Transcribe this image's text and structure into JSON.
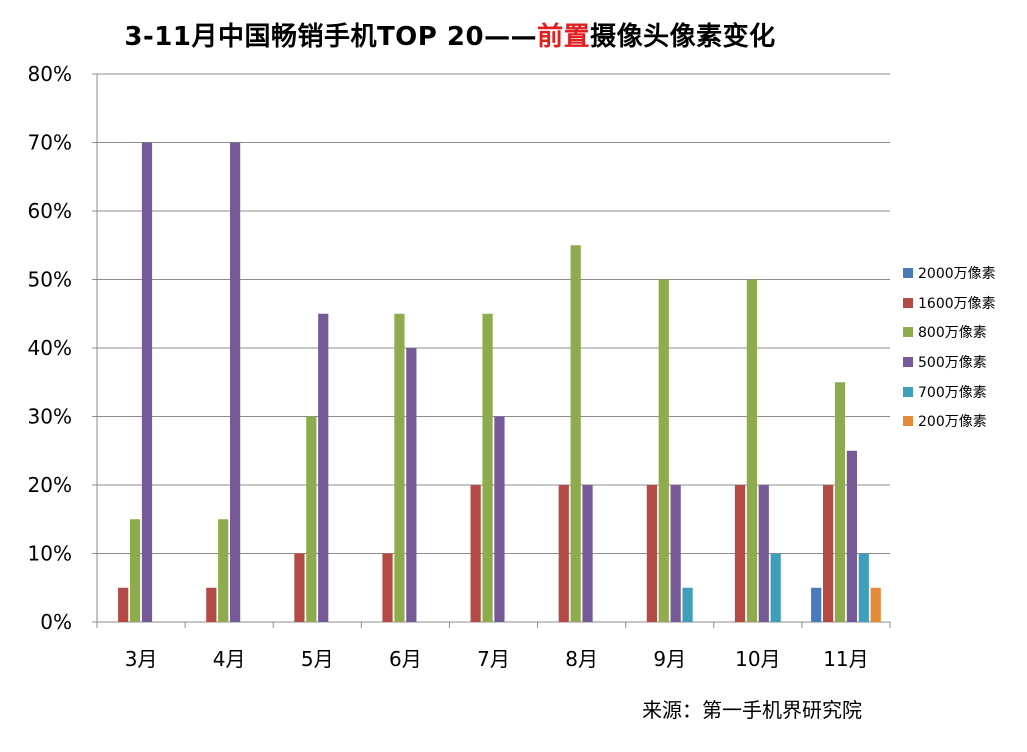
{
  "title": {
    "part1": "3-11月中国畅销手机TOP 20——",
    "highlight": "前置",
    "part2": "摄像头像素变化"
  },
  "source": "来源：第一手机界研究院",
  "chart_data": {
    "type": "bar",
    "title": "3-11月中国畅销手机TOP 20——前置摄像头像素变化",
    "xlabel": "",
    "ylabel": "",
    "ylim": [
      0,
      80
    ],
    "y_ticks": [
      "0%",
      "10%",
      "20%",
      "30%",
      "40%",
      "50%",
      "60%",
      "70%",
      "80%"
    ],
    "grid": true,
    "legend_position": "right",
    "categories": [
      "3月",
      "4月",
      "5月",
      "6月",
      "7月",
      "8月",
      "9月",
      "10月",
      "11月"
    ],
    "series": [
      {
        "name": "2000万像素",
        "color": "#4a7ab9",
        "values": [
          0,
          0,
          0,
          0,
          0,
          0,
          0,
          0,
          5
        ]
      },
      {
        "name": "1600万像素",
        "color": "#b44a45",
        "values": [
          5,
          5,
          10,
          10,
          20,
          20,
          20,
          20,
          20
        ]
      },
      {
        "name": "800万像素",
        "color": "#8eab4e",
        "values": [
          15,
          15,
          30,
          45,
          45,
          55,
          50,
          50,
          35
        ]
      },
      {
        "name": "500万像素",
        "color": "#765a98",
        "values": [
          70,
          70,
          45,
          40,
          30,
          20,
          20,
          20,
          25
        ]
      },
      {
        "name": "700万像素",
        "color": "#3f9fba",
        "values": [
          0,
          0,
          0,
          0,
          0,
          0,
          5,
          10,
          10
        ]
      },
      {
        "name": "200万像素",
        "color": "#e58a38",
        "values": [
          0,
          0,
          0,
          0,
          0,
          0,
          0,
          0,
          5
        ]
      }
    ]
  }
}
